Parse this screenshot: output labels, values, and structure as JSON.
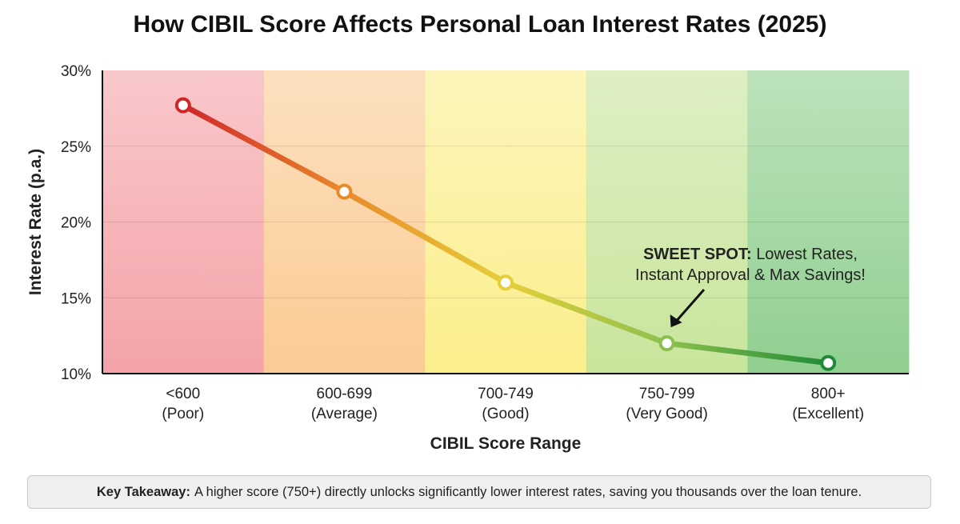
{
  "chart_data": {
    "type": "line",
    "title": "How CIBIL Score Affects Personal Loan Interest Rates (2025)",
    "xlabel": "CIBIL Score Range",
    "ylabel": "Interest Rate (p.a.)",
    "ylim": [
      10,
      30
    ],
    "yticks": [
      "10%",
      "15%",
      "20%",
      "25%",
      "30%"
    ],
    "grid": true,
    "categories": [
      {
        "range": "<600",
        "tier": "(Poor)"
      },
      {
        "range": "600-699",
        "tier": "(Average)"
      },
      {
        "range": "700-749",
        "tier": "(Good)"
      },
      {
        "range": "750-799",
        "tier": "(Very Good)"
      },
      {
        "range": "800+",
        "tier": "(Excellent)"
      }
    ],
    "values": [
      27.7,
      22,
      16,
      12,
      10.7
    ],
    "band_colors": [
      "#f4a3a8",
      "#fbcb94",
      "#fbee8c",
      "#c8e59c",
      "#90cf90"
    ],
    "point_colors": [
      "#d0262b",
      "#e88a2a",
      "#e6cf3a",
      "#8cc04e",
      "#1f8a35"
    ],
    "annotation": {
      "bold": "SWEET SPOT:",
      "line1": "Lowest Rates,",
      "line2": "Instant Approval & Max Savings!",
      "target_index": 3
    }
  },
  "takeaway": {
    "bold": "Key Takeaway:",
    "text": "A higher score (750+) directly unlocks significantly lower interest rates, saving you thousands over the loan tenure."
  }
}
